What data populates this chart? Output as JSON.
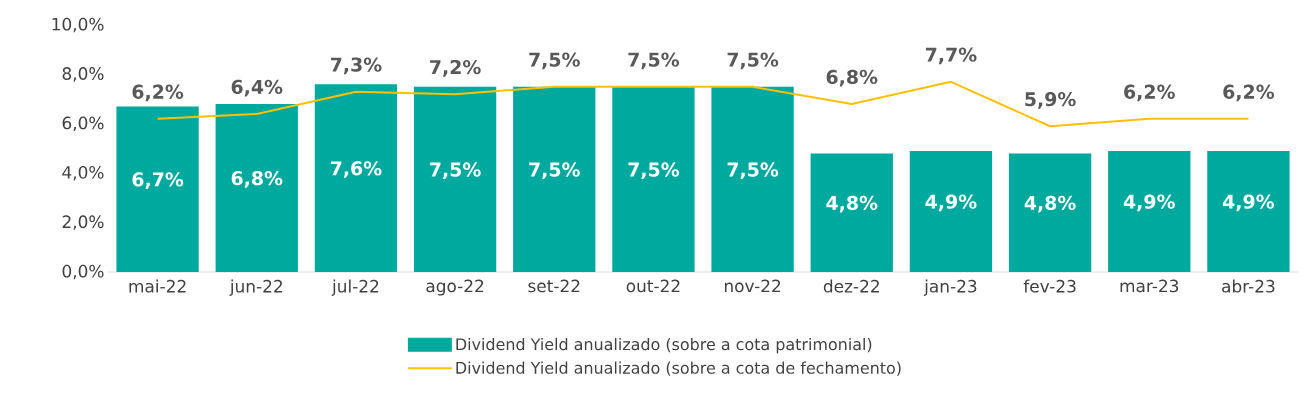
{
  "chart_data": {
    "type": "bar",
    "categories": [
      "mai-22",
      "jun-22",
      "jul-22",
      "ago-22",
      "set-22",
      "out-22",
      "nov-22",
      "dez-22",
      "jan-23",
      "fev-23",
      "mar-23",
      "abr-23"
    ],
    "series": [
      {
        "name": "Dividend Yield anualizado (sobre a cota patrimonial)",
        "color": "#00a99d",
        "values": [
          6.7,
          6.8,
          7.6,
          7.5,
          7.5,
          7.5,
          7.5,
          4.8,
          4.9,
          4.8,
          4.9,
          4.9
        ],
        "value_labels": [
          "6,7%",
          "6,8%",
          "7,6%",
          "7,5%",
          "7,5%",
          "7,5%",
          "7,5%",
          "4,8%",
          "4,9%",
          "4,8%",
          "4,9%",
          "4,9%"
        ]
      },
      {
        "name": "Dividend Yield anualizado (sobre a cota de fechamento)",
        "type": "line",
        "color": "#ffc000",
        "values": [
          6.2,
          6.4,
          7.3,
          7.2,
          7.5,
          7.5,
          7.5,
          6.8,
          7.7,
          5.9,
          6.2,
          6.2
        ],
        "value_labels": [
          "6,2%",
          "6,4%",
          "7,3%",
          "7,2%",
          "7,5%",
          "7,5%",
          "7,5%",
          "6,8%",
          "7,7%",
          "5,9%",
          "6,2%",
          "6,2%"
        ]
      }
    ],
    "ylim": [
      0,
      10
    ],
    "yticks": [
      {
        "value": 0,
        "label": "0,0%"
      },
      {
        "value": 2,
        "label": "2,0%"
      },
      {
        "value": 4,
        "label": "4,0%"
      },
      {
        "value": 6,
        "label": "6,0%"
      },
      {
        "value": 8,
        "label": "8,0%"
      },
      {
        "value": 10,
        "label": "10,0%"
      }
    ],
    "grid": false,
    "legend": "bottom",
    "marker": "none"
  }
}
